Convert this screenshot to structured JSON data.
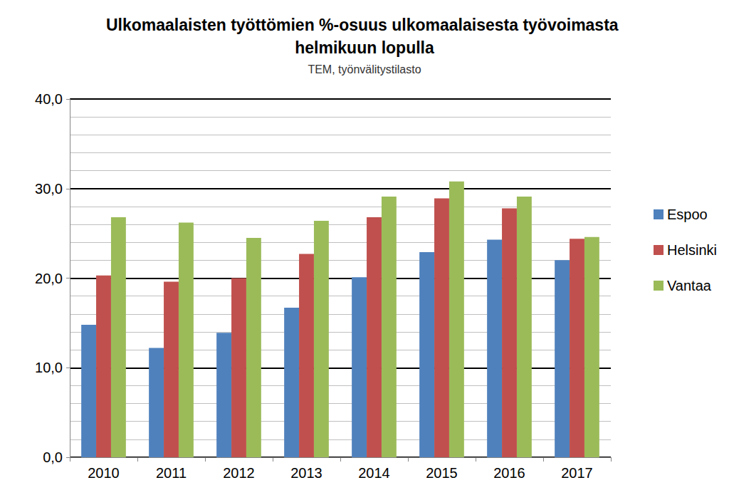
{
  "chart_data": {
    "type": "bar",
    "title": "Ulkomaalaisten työttömien %-osuus ulkomaalaisesta työvoimasta helmikuun lopulla",
    "subtitle": "TEM, työnvälitystilasto",
    "categories": [
      "2010",
      "2011",
      "2012",
      "2013",
      "2014",
      "2015",
      "2016",
      "2017"
    ],
    "series": [
      {
        "name": "Espoo",
        "color": "#4f81bd",
        "values": [
          14.8,
          12.2,
          13.9,
          16.7,
          20.1,
          22.9,
          24.3,
          22.0
        ]
      },
      {
        "name": "Helsinki",
        "color": "#c0504d",
        "values": [
          20.3,
          19.6,
          20.0,
          22.7,
          26.8,
          28.9,
          27.8,
          24.4
        ]
      },
      {
        "name": "Vantaa",
        "color": "#9bbb59",
        "values": [
          26.8,
          26.2,
          24.5,
          26.4,
          29.1,
          30.8,
          29.1,
          24.6
        ]
      }
    ],
    "ylim": [
      0,
      40
    ],
    "yticks": [
      {
        "value": 0,
        "label": "0,0"
      },
      {
        "value": 10,
        "label": "10,0"
      },
      {
        "value": 20,
        "label": "20,0"
      },
      {
        "value": 30,
        "label": "30,0"
      },
      {
        "value": 40,
        "label": "40,0"
      }
    ],
    "grid": true,
    "legend": "right"
  }
}
